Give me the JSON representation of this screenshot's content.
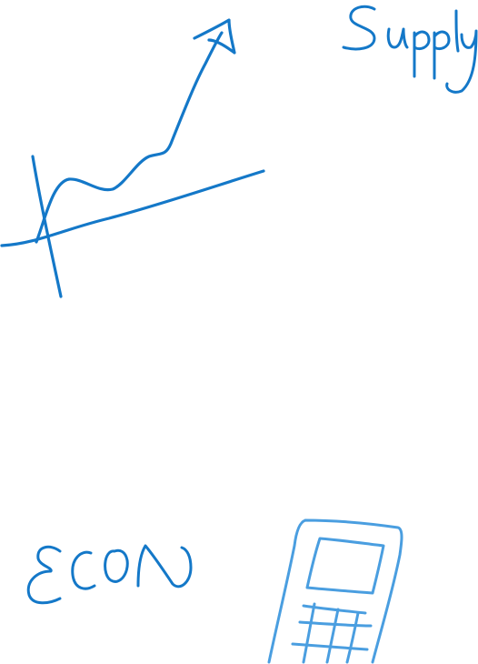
{
  "sketches": [
    {
      "name": "trend-graph",
      "kind": "drawing"
    },
    {
      "name": "supply-word",
      "kind": "handwritten-text",
      "text": "Supply"
    },
    {
      "name": "econ-word",
      "kind": "handwritten-text",
      "text": "ECON"
    },
    {
      "name": "phone-sketch",
      "kind": "drawing"
    }
  ],
  "colors": {
    "background": "#ffffff",
    "ink_dark": "#1478c8",
    "ink_light": "#4a9ee0"
  }
}
